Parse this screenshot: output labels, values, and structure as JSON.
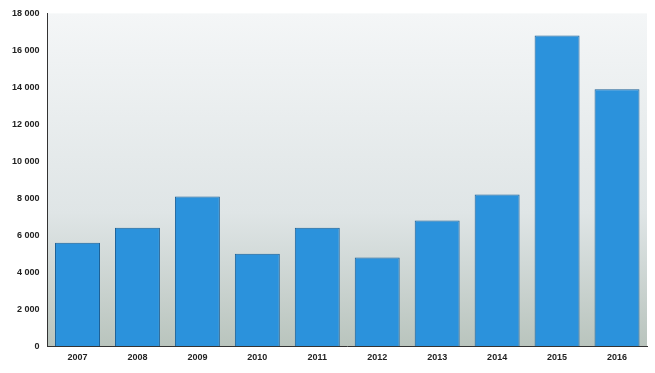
{
  "chart_data": {
    "type": "bar",
    "categories": [
      "2007",
      "2008",
      "2009",
      "2010",
      "2011",
      "2012",
      "2013",
      "2014",
      "2015",
      "2016"
    ],
    "values": [
      5600,
      6400,
      8100,
      5000,
      6400,
      4800,
      6800,
      8200,
      16800,
      13900
    ],
    "color": "#2b92dc",
    "ylim": [
      0,
      18000
    ],
    "yticks": [
      0,
      {
        "value": 2000,
        "label": "2 000"
      },
      {
        "value": 4000,
        "label": "4 000"
      },
      {
        "value": 6000,
        "label": "6 000"
      },
      {
        "value": 8000,
        "label": "8 000"
      },
      {
        "value": 10000,
        "label": "10 000"
      },
      {
        "value": 12000,
        "label": "12 000"
      },
      {
        "value": 14000,
        "label": "14 000"
      },
      {
        "value": 16000,
        "label": "16 000"
      },
      {
        "value": 18000,
        "label": "18 000"
      }
    ],
    "grid": false
  }
}
